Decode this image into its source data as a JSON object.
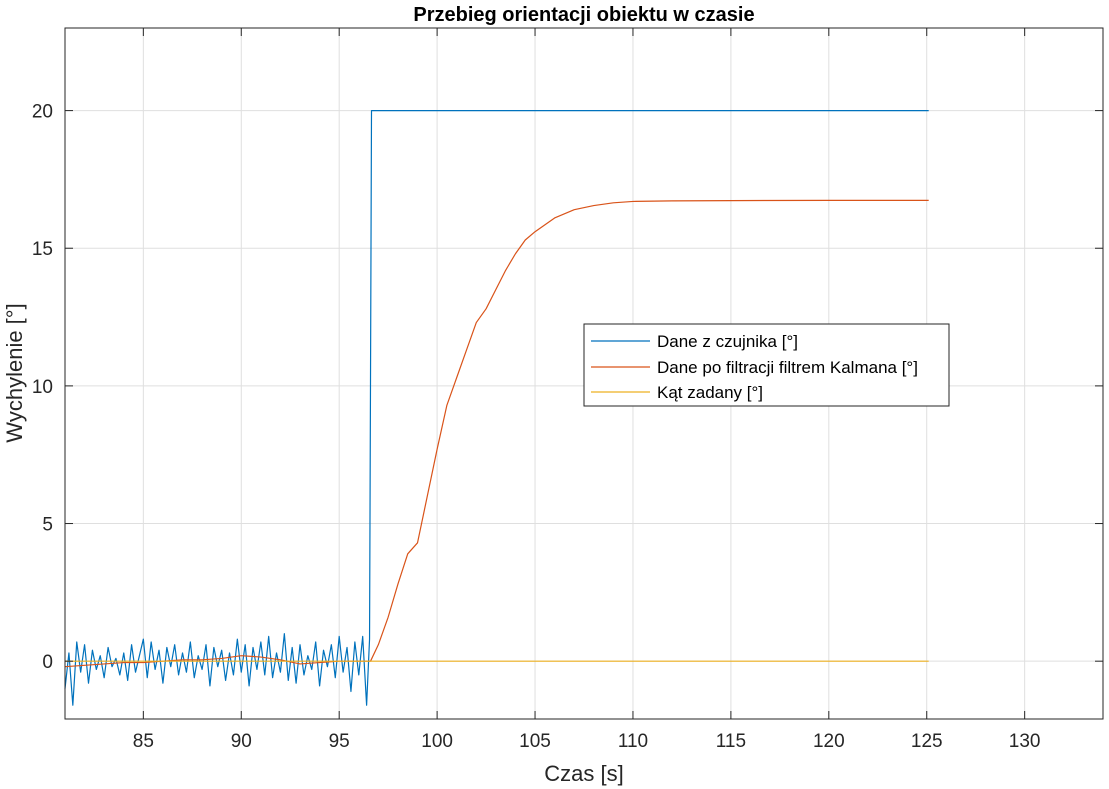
{
  "chart_data": {
    "type": "line",
    "title": "Przebieg orientacji obiektu w czasie",
    "xlabel": "Czas [s]",
    "ylabel": "Wychylenie [°]",
    "xlim": [
      81,
      134
    ],
    "ylim": [
      -2.1,
      23
    ],
    "xticks": [
      85,
      90,
      95,
      100,
      105,
      110,
      115,
      120,
      125,
      130
    ],
    "yticks": [
      0,
      5,
      10,
      15,
      20
    ],
    "grid": true,
    "legend_position": "center-right",
    "series": [
      {
        "name": "Dane z czujnika [°]",
        "color": "#0072BD",
        "x": [
          81.0,
          81.2,
          81.4,
          81.6,
          81.8,
          82.0,
          82.2,
          82.4,
          82.6,
          82.8,
          83.0,
          83.2,
          83.4,
          83.6,
          83.8,
          84.0,
          84.2,
          84.4,
          84.6,
          84.8,
          85.0,
          85.2,
          85.4,
          85.6,
          85.8,
          86.0,
          86.2,
          86.4,
          86.6,
          86.8,
          87.0,
          87.2,
          87.4,
          87.6,
          87.8,
          88.0,
          88.2,
          88.4,
          88.6,
          88.8,
          89.0,
          89.2,
          89.4,
          89.6,
          89.8,
          90.0,
          90.2,
          90.4,
          90.6,
          90.8,
          91.0,
          91.2,
          91.4,
          91.6,
          91.8,
          92.0,
          92.2,
          92.4,
          92.6,
          92.8,
          93.0,
          93.2,
          93.4,
          93.6,
          93.8,
          94.0,
          94.2,
          94.4,
          94.6,
          94.8,
          95.0,
          95.2,
          95.4,
          95.6,
          95.8,
          96.0,
          96.2,
          96.4,
          96.55,
          96.65,
          125.1
        ],
        "y": [
          -1.0,
          0.3,
          -1.6,
          0.7,
          -0.4,
          0.6,
          -0.8,
          0.4,
          -0.3,
          0.2,
          -0.6,
          0.5,
          -0.2,
          0.1,
          -0.5,
          0.3,
          -0.7,
          0.6,
          -0.4,
          0.2,
          0.8,
          -0.6,
          0.7,
          -0.3,
          0.4,
          -0.8,
          0.5,
          -0.2,
          0.6,
          -0.5,
          0.3,
          -0.4,
          0.7,
          -0.6,
          0.2,
          -0.3,
          0.6,
          -0.9,
          0.5,
          -0.2,
          0.4,
          -0.7,
          0.3,
          -0.5,
          0.8,
          -0.4,
          0.6,
          -0.9,
          0.5,
          -0.3,
          0.7,
          -0.5,
          0.9,
          -0.6,
          0.3,
          -0.4,
          1.0,
          -0.7,
          0.5,
          -0.8,
          0.6,
          -0.5,
          0.2,
          -0.3,
          0.7,
          -0.9,
          0.4,
          -0.2,
          0.6,
          -0.6,
          0.9,
          -0.4,
          0.5,
          -1.1,
          0.7,
          -0.5,
          0.9,
          -1.6,
          0.8,
          20.0,
          20.0
        ]
      },
      {
        "name": "Dane po filtracji filtrem Kalmana [°]",
        "color": "#D95319",
        "x": [
          81.0,
          82.0,
          83.0,
          84.0,
          85.0,
          86.0,
          87.0,
          88.0,
          89.0,
          90.0,
          91.0,
          92.0,
          93.0,
          94.0,
          95.0,
          96.0,
          96.6,
          97.0,
          97.5,
          98.0,
          98.5,
          99.0,
          99.5,
          100.0,
          100.5,
          101.0,
          101.5,
          102.0,
          102.5,
          103.0,
          103.5,
          104.0,
          104.5,
          105.0,
          106.0,
          107.0,
          108.0,
          109.0,
          110.0,
          112.0,
          115.0,
          120.0,
          125.1
        ],
        "y": [
          -0.2,
          -0.15,
          -0.1,
          -0.05,
          -0.05,
          0.0,
          0.05,
          0.05,
          0.1,
          0.2,
          0.15,
          0.05,
          -0.1,
          -0.05,
          0.0,
          0.0,
          0.0,
          0.6,
          1.6,
          2.8,
          3.9,
          4.3,
          6.0,
          7.7,
          9.3,
          10.3,
          11.3,
          12.3,
          12.8,
          13.5,
          14.2,
          14.8,
          15.3,
          15.6,
          16.1,
          16.4,
          16.55,
          16.65,
          16.7,
          16.72,
          16.73,
          16.74,
          16.74
        ]
      },
      {
        "name": "Kąt zadany [°]",
        "color": "#EDB120",
        "x": [
          81.0,
          125.1
        ],
        "y": [
          0,
          0
        ]
      }
    ]
  }
}
